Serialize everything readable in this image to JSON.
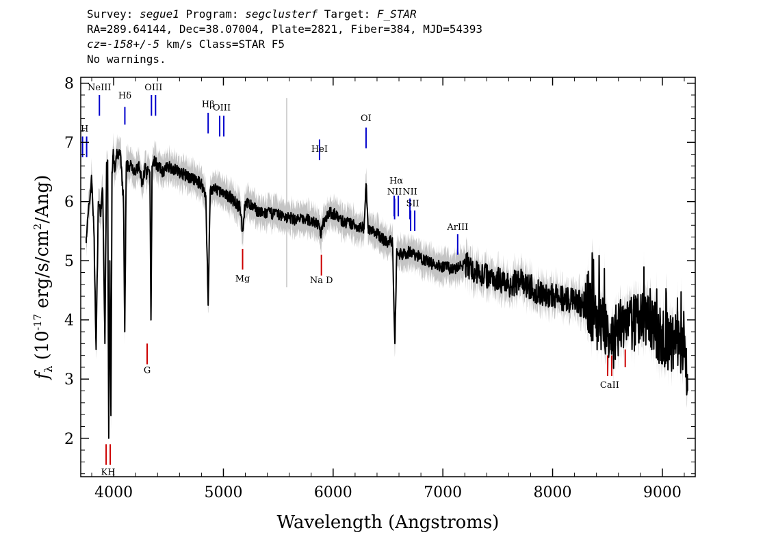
{
  "header": {
    "line1_a": "Survey: ",
    "survey": "segue1",
    "line1_b": " Program: ",
    "program": "segclusterf",
    "line1_c": " Target: ",
    "target": "F_STAR",
    "line2": "RA=289.64144, Dec=38.07004, Plate=2821, Fiber=384, MJD=54393",
    "line3_a": "cz=",
    "cz": "-158+/-5",
    "line3_b": " km/s Class=STAR F5",
    "line4": "No warnings."
  },
  "chart_data": {
    "type": "line",
    "xlabel": "Wavelength (Angstroms)",
    "ylabel": "f_λ (10^-17 erg/s/cm^2/Ang)",
    "xlim": [
      3700,
      9300
    ],
    "ylim": [
      1.35,
      8.1
    ],
    "x_ticks": [
      4000,
      5000,
      6000,
      7000,
      8000,
      9000
    ],
    "y_ticks": [
      2,
      3,
      4,
      5,
      6,
      7,
      8
    ],
    "series": [
      {
        "color": "#000000",
        "x": [
          3750,
          3800,
          3820,
          3840,
          3860,
          3880,
          3900,
          3920,
          3935,
          3945,
          3955,
          3965,
          3975,
          3985,
          3995,
          4010,
          4030,
          4060,
          4090,
          4101,
          4115,
          4140,
          4170,
          4200,
          4230,
          4260,
          4290,
          4300,
          4310,
          4330,
          4340,
          4350,
          4370,
          4400,
          4450,
          4500,
          4600,
          4700,
          4800,
          4840,
          4861,
          4880,
          4920,
          4960,
          5000,
          5050,
          5100,
          5150,
          5175,
          5200,
          5270,
          5350,
          5450,
          5550,
          5650,
          5750,
          5850,
          5890,
          5900,
          5950,
          6000,
          6100,
          6200,
          6280,
          6300,
          6320,
          6400,
          6500,
          6540,
          6563,
          6580,
          6600,
          6700,
          6800,
          6900,
          7000,
          7100,
          7200,
          7300,
          7400,
          7500,
          7600,
          7700,
          7800,
          7900,
          8000,
          8100,
          8200,
          8300,
          8400,
          8500,
          8542,
          8600,
          8700,
          8800,
          8900,
          9000,
          9100,
          9200,
          9230
        ],
        "y": [
          5.4,
          6.4,
          5.5,
          3.5,
          6.0,
          5.8,
          6.2,
          3.6,
          6.6,
          6.7,
          2.0,
          5.0,
          2.4,
          6.5,
          6.8,
          6.5,
          6.8,
          6.8,
          6.0,
          3.8,
          6.6,
          6.6,
          6.6,
          6.5,
          6.6,
          6.3,
          6.6,
          6.4,
          6.5,
          6.5,
          4.0,
          6.6,
          6.7,
          6.6,
          6.5,
          6.6,
          6.5,
          6.4,
          6.3,
          6.1,
          4.25,
          6.2,
          6.2,
          6.2,
          6.1,
          6.1,
          6.0,
          5.9,
          5.5,
          6.0,
          5.9,
          5.8,
          5.8,
          5.75,
          5.7,
          5.7,
          5.65,
          5.45,
          5.6,
          5.8,
          5.8,
          5.65,
          5.6,
          5.55,
          6.3,
          5.55,
          5.45,
          5.3,
          5.35,
          3.6,
          5.2,
          5.1,
          5.15,
          5.05,
          4.95,
          4.9,
          4.85,
          4.95,
          4.8,
          4.75,
          4.7,
          4.6,
          4.65,
          4.55,
          4.45,
          4.4,
          4.35,
          4.3,
          4.25,
          4.0,
          3.9,
          3.55,
          3.9,
          3.9,
          4.0,
          3.9,
          3.7,
          3.6,
          3.55,
          2.8
        ]
      }
    ],
    "lines": [
      {
        "label": "H",
        "x": 3735,
        "y_top": 7.1,
        "y_bot": 6.75,
        "color": "#0000cc",
        "double": true,
        "label_y": 7.18
      },
      {
        "label": "NeIII",
        "x": 3870,
        "y_top": 7.8,
        "y_bot": 7.45,
        "color": "#0000cc",
        "double": false,
        "label_y": 7.88
      },
      {
        "label": "Hδ",
        "x": 4102,
        "y_top": 7.6,
        "y_bot": 7.3,
        "color": "#0000cc",
        "double": false,
        "label_y": 7.74
      },
      {
        "label": "OIII",
        "x": 4363,
        "y_top": 7.8,
        "y_bot": 7.45,
        "color": "#0000cc",
        "double": true,
        "label_y": 7.88
      },
      {
        "label": "Hβ",
        "x": 4861,
        "y_top": 7.5,
        "y_bot": 7.15,
        "color": "#0000cc",
        "double": false,
        "label_y": 7.6
      },
      {
        "label": "OIII",
        "x": 4985,
        "y_top": 7.45,
        "y_bot": 7.1,
        "color": "#0000cc",
        "double": true,
        "label_y": 7.54
      },
      {
        "label": "HeI",
        "x": 5876,
        "y_top": 7.05,
        "y_bot": 6.7,
        "color": "#0000cc",
        "double": false,
        "label_y": 6.84
      },
      {
        "label": "OI",
        "x": 6300,
        "y_top": 7.25,
        "y_bot": 6.9,
        "color": "#0000cc",
        "double": false,
        "label_y": 7.36
      },
      {
        "label": "NII",
        "x": 6560,
        "y_top": 6.05,
        "y_bot": 5.7,
        "color": "#0000cc",
        "double": false,
        "label_y": 6.12
      },
      {
        "label": "Hα",
        "x": 6575,
        "y_top": 6.1,
        "y_bot": 5.75,
        "color": "#0000cc",
        "double": true,
        "label_y": 6.3
      },
      {
        "label": "NII",
        "x": 6700,
        "y_top": 6.05,
        "y_bot": 5.7,
        "color": "#0000cc",
        "double": false,
        "label_y": 6.12
      },
      {
        "label": "SII",
        "x": 6725,
        "y_top": 5.85,
        "y_bot": 5.5,
        "color": "#0000cc",
        "double": true,
        "label_y": 5.92
      },
      {
        "label": "ArIII",
        "x": 7135,
        "y_top": 5.45,
        "y_bot": 5.1,
        "color": "#0000cc",
        "double": false,
        "label_y": 5.52
      },
      {
        "label": "KH",
        "x": 3950,
        "y_top": 1.9,
        "y_bot": 1.55,
        "color": "#cc0000",
        "double": true,
        "label_y": 1.38
      },
      {
        "label": "G",
        "x": 4305,
        "y_top": 3.6,
        "y_bot": 3.25,
        "color": "#cc0000",
        "double": false,
        "label_y": 3.1
      },
      {
        "label": "Mg",
        "x": 5175,
        "y_top": 5.2,
        "y_bot": 4.85,
        "color": "#cc0000",
        "double": false,
        "label_y": 4.65
      },
      {
        "label": "Na D",
        "x": 5893,
        "y_top": 5.1,
        "y_bot": 4.75,
        "color": "#cc0000",
        "double": false,
        "label_y": 4.62
      },
      {
        "label": "CaII",
        "x": 8520,
        "y_top": 3.4,
        "y_bot": 3.05,
        "color": "#cc0000",
        "double": true,
        "label_y": 2.85
      },
      {
        "label": "",
        "x": 8662,
        "y_top": 3.5,
        "y_bot": 3.2,
        "color": "#cc0000",
        "double": false,
        "label_y": 3.2
      }
    ]
  }
}
